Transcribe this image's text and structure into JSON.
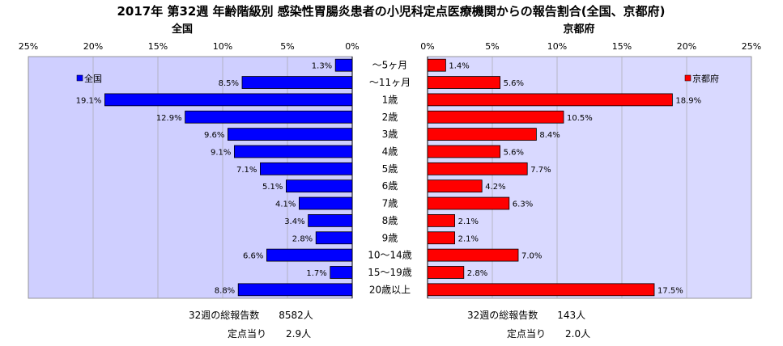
{
  "chart_data": {
    "type": "bar",
    "orientation": "horizontal",
    "title": "2017年 第32週 年齢階級別 感染性胃腸炎患者の小児科定点医療機関からの報告割合(全国、京都府)",
    "categories": [
      "～5ヶ月",
      "～11ヶ月",
      "1歳",
      "2歳",
      "3歳",
      "4歳",
      "5歳",
      "6歳",
      "7歳",
      "8歳",
      "9歳",
      "10～14歳",
      "15～19歳",
      "20歳以上"
    ],
    "xticks": [
      "25%",
      "20%",
      "15%",
      "10%",
      "5%",
      "0%"
    ],
    "xticks_right": [
      "0%",
      "5%",
      "10%",
      "15%",
      "20%",
      "25%"
    ],
    "xlim": [
      0,
      25
    ],
    "grid": true,
    "series": [
      {
        "name": "全国",
        "side_title": "全国",
        "color": "#0000ff",
        "values": [
          1.3,
          8.5,
          19.1,
          12.9,
          9.6,
          9.1,
          7.1,
          5.1,
          4.1,
          3.4,
          2.8,
          6.6,
          1.7,
          8.8
        ],
        "labels": [
          "1.3%",
          "8.5%",
          "19.1%",
          "12.9%",
          "9.6%",
          "9.1%",
          "7.1%",
          "5.1%",
          "4.1%",
          "3.4%",
          "2.8%",
          "6.6%",
          "1.7%",
          "8.8%"
        ],
        "legend_placement": "top-left",
        "footer_total": "32週の総報告数　　8582人",
        "footer_per": "定点当り　　2.9人"
      },
      {
        "name": "京都府",
        "side_title": "京都府",
        "color": "#ff0000",
        "values": [
          1.4,
          5.6,
          18.9,
          10.5,
          8.4,
          5.6,
          7.7,
          4.2,
          6.3,
          2.1,
          2.1,
          7.0,
          2.8,
          17.5
        ],
        "labels": [
          "1.4%",
          "5.6%",
          "18.9%",
          "10.5%",
          "8.4%",
          "5.6%",
          "7.7%",
          "4.2%",
          "6.3%",
          "2.1%",
          "2.1%",
          "7.0%",
          "2.8%",
          "17.5%"
        ],
        "legend_placement": "top-right",
        "footer_total": "32週の総報告数　　143人",
        "footer_per": "定点当り　　2.0人"
      }
    ]
  }
}
